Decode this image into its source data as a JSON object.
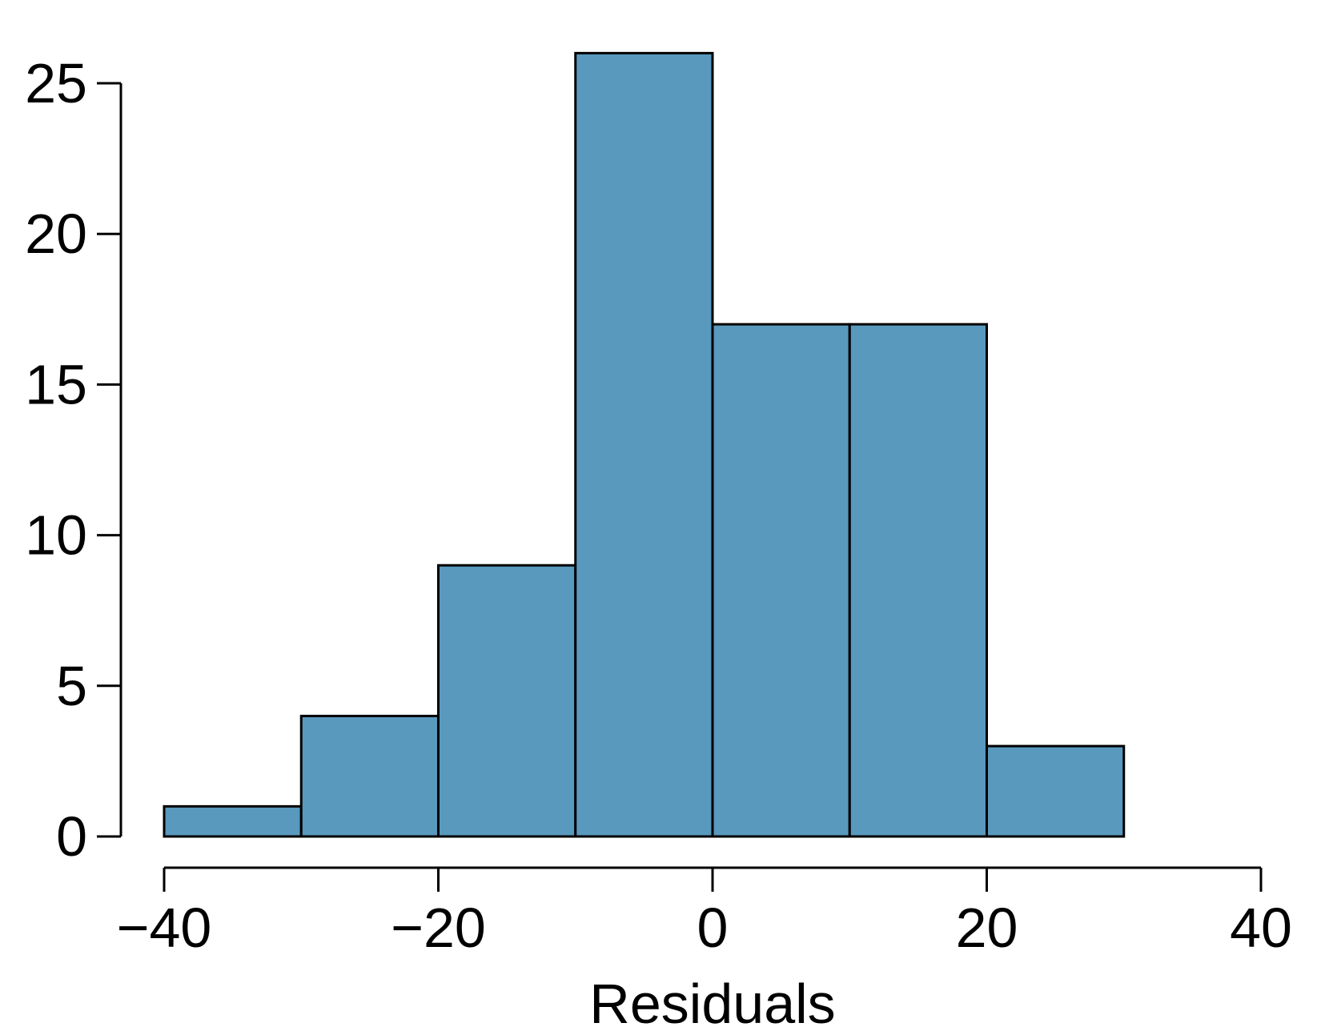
{
  "chart_data": {
    "type": "bar",
    "subtype": "histogram",
    "title": "",
    "xlabel": "Residuals",
    "ylabel": "",
    "bins": [
      {
        "x0": -40,
        "x1": -30,
        "count": 1
      },
      {
        "x0": -30,
        "x1": -20,
        "count": 4
      },
      {
        "x0": -20,
        "x1": -10,
        "count": 9
      },
      {
        "x0": -10,
        "x1": 0,
        "count": 26
      },
      {
        "x0": 0,
        "x1": 10,
        "count": 17
      },
      {
        "x0": 10,
        "x1": 20,
        "count": 17
      },
      {
        "x0": 20,
        "x1": 30,
        "count": 3
      }
    ],
    "xlim": [
      -40,
      40
    ],
    "ylim": [
      0,
      25
    ],
    "x_ticks": [
      -40,
      -20,
      0,
      20,
      40
    ],
    "x_tick_labels": [
      "−40",
      "−20",
      "0",
      "20",
      "40"
    ],
    "y_ticks": [
      0,
      5,
      10,
      15,
      20,
      25
    ],
    "y_tick_labels": [
      "0",
      "5",
      "10",
      "15",
      "20",
      "25"
    ],
    "grid": false,
    "bar_color": "#5899BD",
    "edge_color": "#000000"
  }
}
